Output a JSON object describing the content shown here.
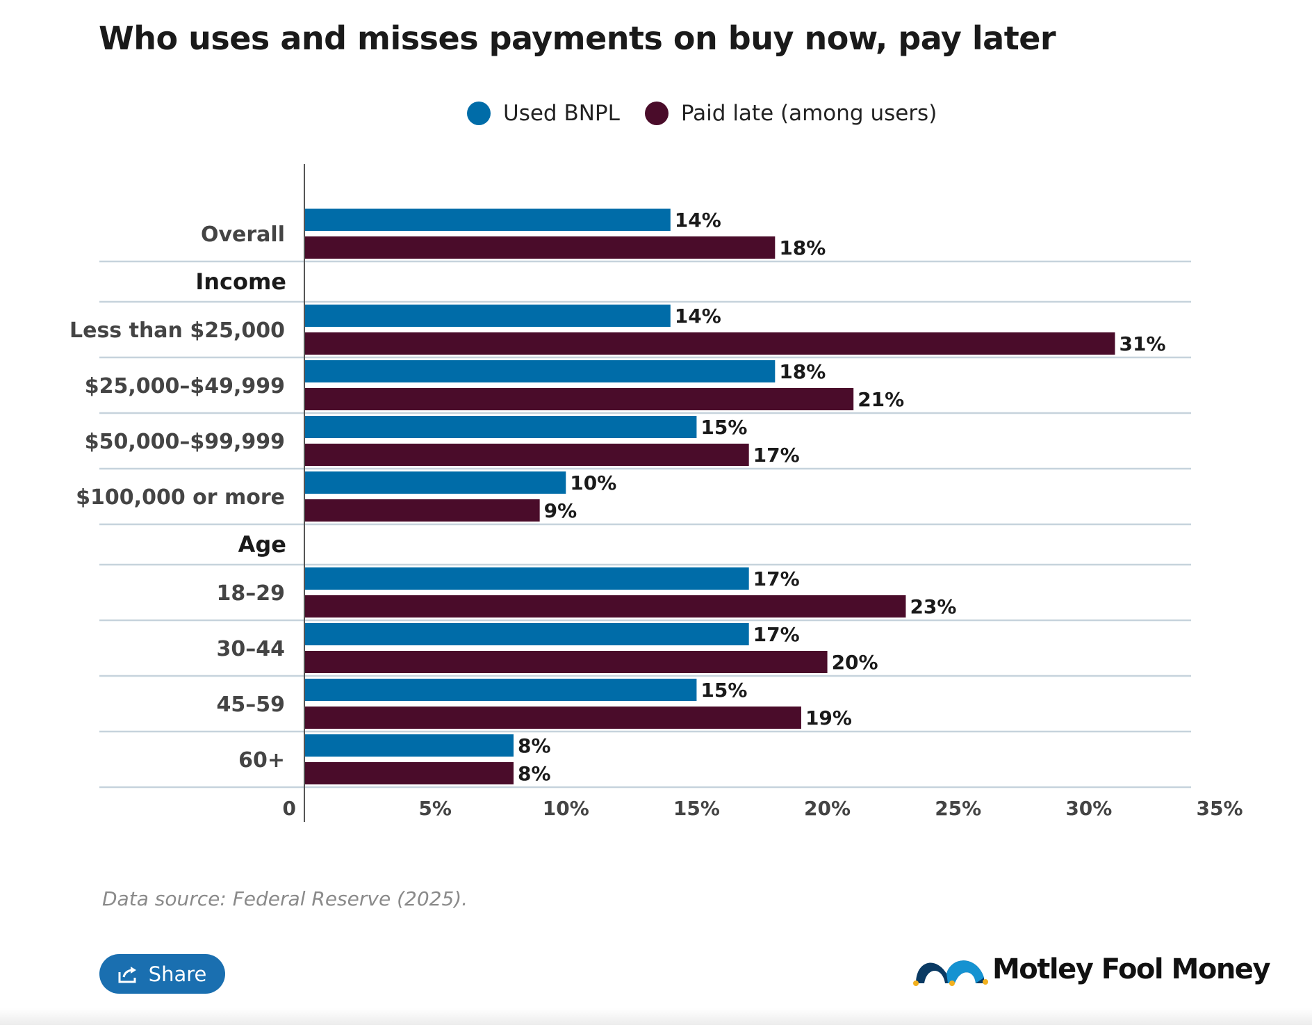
{
  "title": "Who uses and misses payments on buy now, pay later",
  "legend": {
    "used_label": "Used BNPL",
    "late_label": "Paid late (among users)"
  },
  "colors": {
    "used": "#006ca8",
    "late": "#4a0c2a",
    "gridline": "#c6d3dc",
    "axis": "#555555"
  },
  "source": "Data source: Federal Reserve (2025).",
  "share": {
    "label": "Share"
  },
  "logo": {
    "text": "Motley Fool Money"
  },
  "chart_data": {
    "type": "bar",
    "orientation": "horizontal",
    "xlim": [
      0,
      35
    ],
    "x_ticks": [
      0,
      5,
      10,
      15,
      20,
      25,
      30,
      35
    ],
    "x_tick_labels": [
      "0",
      "5%",
      "10%",
      "15%",
      "20%",
      "25%",
      "30%",
      "35%"
    ],
    "grid": "horizontal row separators",
    "legend_position": "top-center",
    "series": [
      {
        "name": "Used BNPL",
        "color": "#006ca8"
      },
      {
        "name": "Paid late (among users)",
        "color": "#4a0c2a"
      }
    ],
    "rows": [
      {
        "label": "Overall",
        "used": 14,
        "late": 18
      },
      {
        "label": "Income",
        "header": true
      },
      {
        "label": "Less than $25,000",
        "used": 14,
        "late": 31
      },
      {
        "label": "$25,000–$49,999",
        "used": 18,
        "late": 21
      },
      {
        "label": "$50,000–$99,999",
        "used": 15,
        "late": 17
      },
      {
        "label": "$100,000 or more",
        "used": 10,
        "late": 9
      },
      {
        "label": "Age",
        "header": true
      },
      {
        "label": "18–29",
        "used": 17,
        "late": 23
      },
      {
        "label": "30–44",
        "used": 17,
        "late": 20
      },
      {
        "label": "45–59",
        "used": 15,
        "late": 19
      },
      {
        "label": "60+",
        "used": 8,
        "late": 8
      }
    ]
  }
}
